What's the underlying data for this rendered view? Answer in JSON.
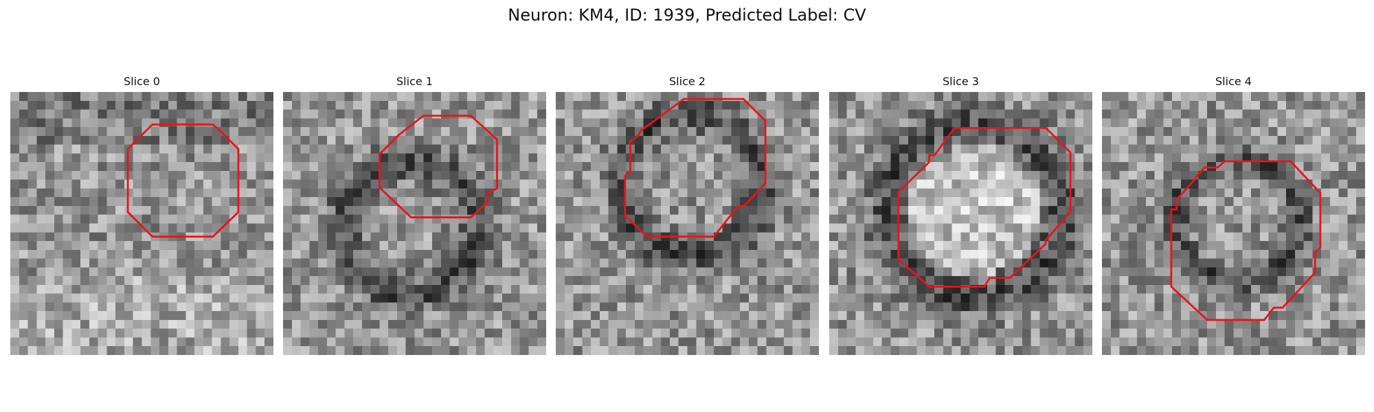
{
  "figure": {
    "title": "Neuron: KM4, ID: 1939, Predicted Label: CV",
    "outline_color": "#e8141c"
  },
  "slices": [
    {
      "label": "Slice 0",
      "description": "grayscale patch with a faint roundish region outlined",
      "contour": [
        [
          16.2,
          3.7
        ],
        [
          23.1,
          3.7
        ],
        [
          24.0,
          4.5
        ],
        [
          25.0,
          5.5
        ],
        [
          26.0,
          6.5
        ],
        [
          26.0,
          13.7
        ],
        [
          23.1,
          16.5
        ],
        [
          16.2,
          16.5
        ],
        [
          13.4,
          13.7
        ],
        [
          13.4,
          6.5
        ]
      ]
    },
    {
      "label": "Slice 1",
      "description": "grayscale patch with dark ring structures; outline at upper right",
      "contour": [
        [
          16.0,
          2.7
        ],
        [
          21.4,
          2.7
        ],
        [
          24.4,
          5.4
        ],
        [
          24.4,
          11.0
        ],
        [
          23.3,
          11.6
        ],
        [
          23.3,
          12.6
        ],
        [
          21.4,
          14.3
        ],
        [
          14.6,
          14.3
        ],
        [
          11.0,
          10.9
        ],
        [
          11.0,
          7.1
        ],
        [
          13.2,
          4.9
        ]
      ]
    },
    {
      "label": "Slice 2",
      "description": "grayscale patch with dark ring; large outline",
      "contour": [
        [
          14.6,
          0.8
        ],
        [
          21.4,
          0.8
        ],
        [
          23.9,
          3.3
        ],
        [
          23.9,
          10.4
        ],
        [
          21.5,
          13.0
        ],
        [
          20.8,
          13.0
        ],
        [
          18.0,
          16.5
        ],
        [
          10.4,
          16.5
        ],
        [
          7.9,
          14.1
        ],
        [
          7.9,
          9.6
        ],
        [
          8.5,
          9.0
        ],
        [
          8.5,
          5.6
        ],
        [
          9.4,
          5.0
        ],
        [
          9.7,
          4.4
        ]
      ]
    },
    {
      "label": "Slice 3",
      "description": "bright round vesicle with dark membrane; outline inside ring",
      "contour": [
        [
          17.7,
          4.1
        ],
        [
          24.7,
          4.1
        ],
        [
          27.5,
          6.9
        ],
        [
          27.5,
          13.7
        ],
        [
          24.7,
          16.9
        ],
        [
          24.7,
          17.3
        ],
        [
          20.6,
          21.2
        ],
        [
          18.3,
          21.2
        ],
        [
          17.7,
          22.2
        ],
        [
          11.4,
          22.2
        ],
        [
          7.9,
          19.1
        ],
        [
          7.9,
          11.4
        ],
        [
          11.4,
          8.0
        ],
        [
          11.4,
          7.2
        ],
        [
          12.0,
          7.2
        ],
        [
          14.3,
          4.1
        ]
      ]
    },
    {
      "label": "Slice 4",
      "description": "grayscale patch; outline at lower center",
      "contour": [
        [
          16.1,
          7.9
        ],
        [
          21.5,
          7.9
        ],
        [
          24.9,
          11.5
        ],
        [
          24.9,
          17.7
        ],
        [
          24.3,
          18.3
        ],
        [
          24.3,
          20.6
        ],
        [
          20.6,
          24.6
        ],
        [
          19.6,
          24.6
        ],
        [
          18.5,
          26.0
        ],
        [
          12.0,
          26.0
        ],
        [
          7.9,
          22.2
        ],
        [
          7.9,
          13.4
        ],
        [
          8.5,
          13.4
        ],
        [
          8.5,
          12.3
        ],
        [
          10.3,
          10.3
        ],
        [
          11.0,
          9.4
        ],
        [
          11.7,
          8.6
        ],
        [
          13.2,
          8.6
        ],
        [
          14.0,
          7.9
        ]
      ]
    }
  ]
}
